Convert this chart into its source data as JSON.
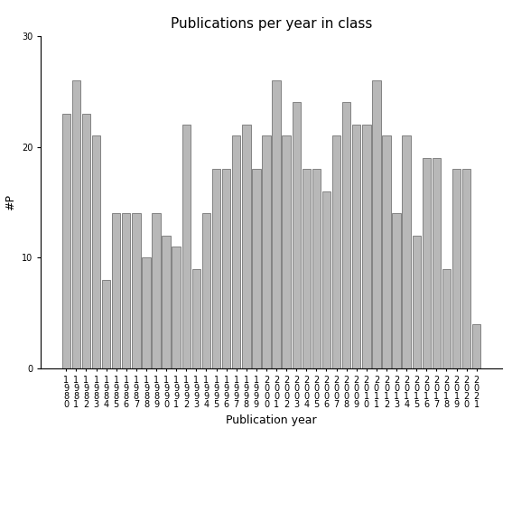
{
  "years": [
    "1980",
    "1981",
    "1982",
    "1983",
    "1984",
    "1985",
    "1986",
    "1987",
    "1988",
    "1989",
    "1990",
    "1991",
    "1992",
    "1993",
    "1994",
    "1995",
    "1996",
    "1997",
    "1998",
    "1999",
    "2000",
    "2001",
    "2002",
    "2003",
    "2004",
    "2005",
    "2006",
    "2007",
    "2008",
    "2009",
    "2010",
    "2011",
    "2012",
    "2013",
    "2014",
    "2015",
    "2016",
    "2017",
    "2018",
    "2019",
    "2020",
    "2021"
  ],
  "values": [
    23,
    26,
    23,
    21,
    8,
    14,
    14,
    14,
    10,
    14,
    12,
    11,
    22,
    9,
    14,
    18,
    18,
    21,
    22,
    18,
    21,
    26,
    21,
    24,
    18,
    18,
    16,
    21,
    24,
    22,
    22,
    26,
    21,
    14,
    21,
    12,
    19,
    19,
    9,
    18,
    18,
    4
  ],
  "bar_color": "#b8b8b8",
  "bar_edgecolor": "#606060",
  "title": "Publications per year in class",
  "xlabel": "Publication year",
  "ylabel": "#P",
  "ylim": [
    0,
    30
  ],
  "yticks": [
    0,
    10,
    20,
    30
  ],
  "title_fontsize": 11,
  "label_fontsize": 9,
  "tick_fontsize": 7,
  "background_color": "#ffffff"
}
